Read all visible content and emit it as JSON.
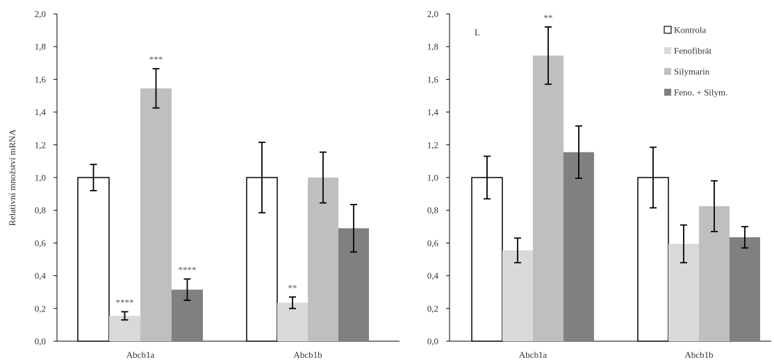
{
  "chart_data": [
    {
      "type": "bar",
      "title": "",
      "panel_label": "",
      "xlabel": "",
      "ylabel": "Relativní množství mRNA",
      "ylim": [
        0,
        2.0
      ],
      "yticks": [
        "0,0",
        "0,2",
        "0,4",
        "0,6",
        "0,8",
        "1,0",
        "1,2",
        "1,4",
        "1,6",
        "1,8",
        "2,0"
      ],
      "categories": [
        "Abcb1a",
        "Abcb1b"
      ],
      "grid": false,
      "series": [
        {
          "name": "Kontrola",
          "color": "#ffffff",
          "values": [
            1.0,
            1.0
          ],
          "errors": [
            0.08,
            0.215
          ],
          "annotations": [
            "",
            ""
          ]
        },
        {
          "name": "Fenofibrát",
          "color": "#d9d9d9",
          "values": [
            0.155,
            0.235
          ],
          "errors": [
            0.025,
            0.035
          ],
          "annotations": [
            "****",
            "**"
          ]
        },
        {
          "name": "Silymarin",
          "color": "#bfbfbf",
          "values": [
            1.545,
            1.0
          ],
          "errors": [
            0.12,
            0.155
          ],
          "annotations": [
            "***",
            ""
          ]
        },
        {
          "name": "Feno. + Silym.",
          "color": "#808080",
          "values": [
            0.315,
            0.69
          ],
          "errors": [
            0.065,
            0.145
          ],
          "annotations": [
            "****",
            ""
          ]
        }
      ]
    },
    {
      "type": "bar",
      "title": "",
      "panel_label": "L",
      "xlabel": "",
      "ylabel": "",
      "ylim": [
        0,
        2.0
      ],
      "yticks": [
        "0,0",
        "0,2",
        "0,4",
        "0,6",
        "0,8",
        "1,0",
        "1,2",
        "1,4",
        "1,6",
        "1,8",
        "2,0"
      ],
      "categories": [
        "Abcb1a",
        "Abcb1b"
      ],
      "grid": false,
      "legend_position": "top-right",
      "series": [
        {
          "name": "Kontrola",
          "color": "#ffffff",
          "values": [
            1.0,
            1.0
          ],
          "errors": [
            0.13,
            0.185
          ],
          "annotations": [
            "",
            ""
          ]
        },
        {
          "name": "Fenofibrát",
          "color": "#d9d9d9",
          "values": [
            0.555,
            0.595
          ],
          "errors": [
            0.075,
            0.115
          ],
          "annotations": [
            "",
            ""
          ]
        },
        {
          "name": "Silymarin",
          "color": "#bfbfbf",
          "values": [
            1.745,
            0.825
          ],
          "errors": [
            0.175,
            0.155
          ],
          "annotations": [
            "**",
            ""
          ]
        },
        {
          "name": "Feno. + Silym.",
          "color": "#808080",
          "values": [
            1.155,
            0.635
          ],
          "errors": [
            0.16,
            0.065
          ],
          "annotations": [
            "",
            ""
          ]
        }
      ]
    }
  ]
}
